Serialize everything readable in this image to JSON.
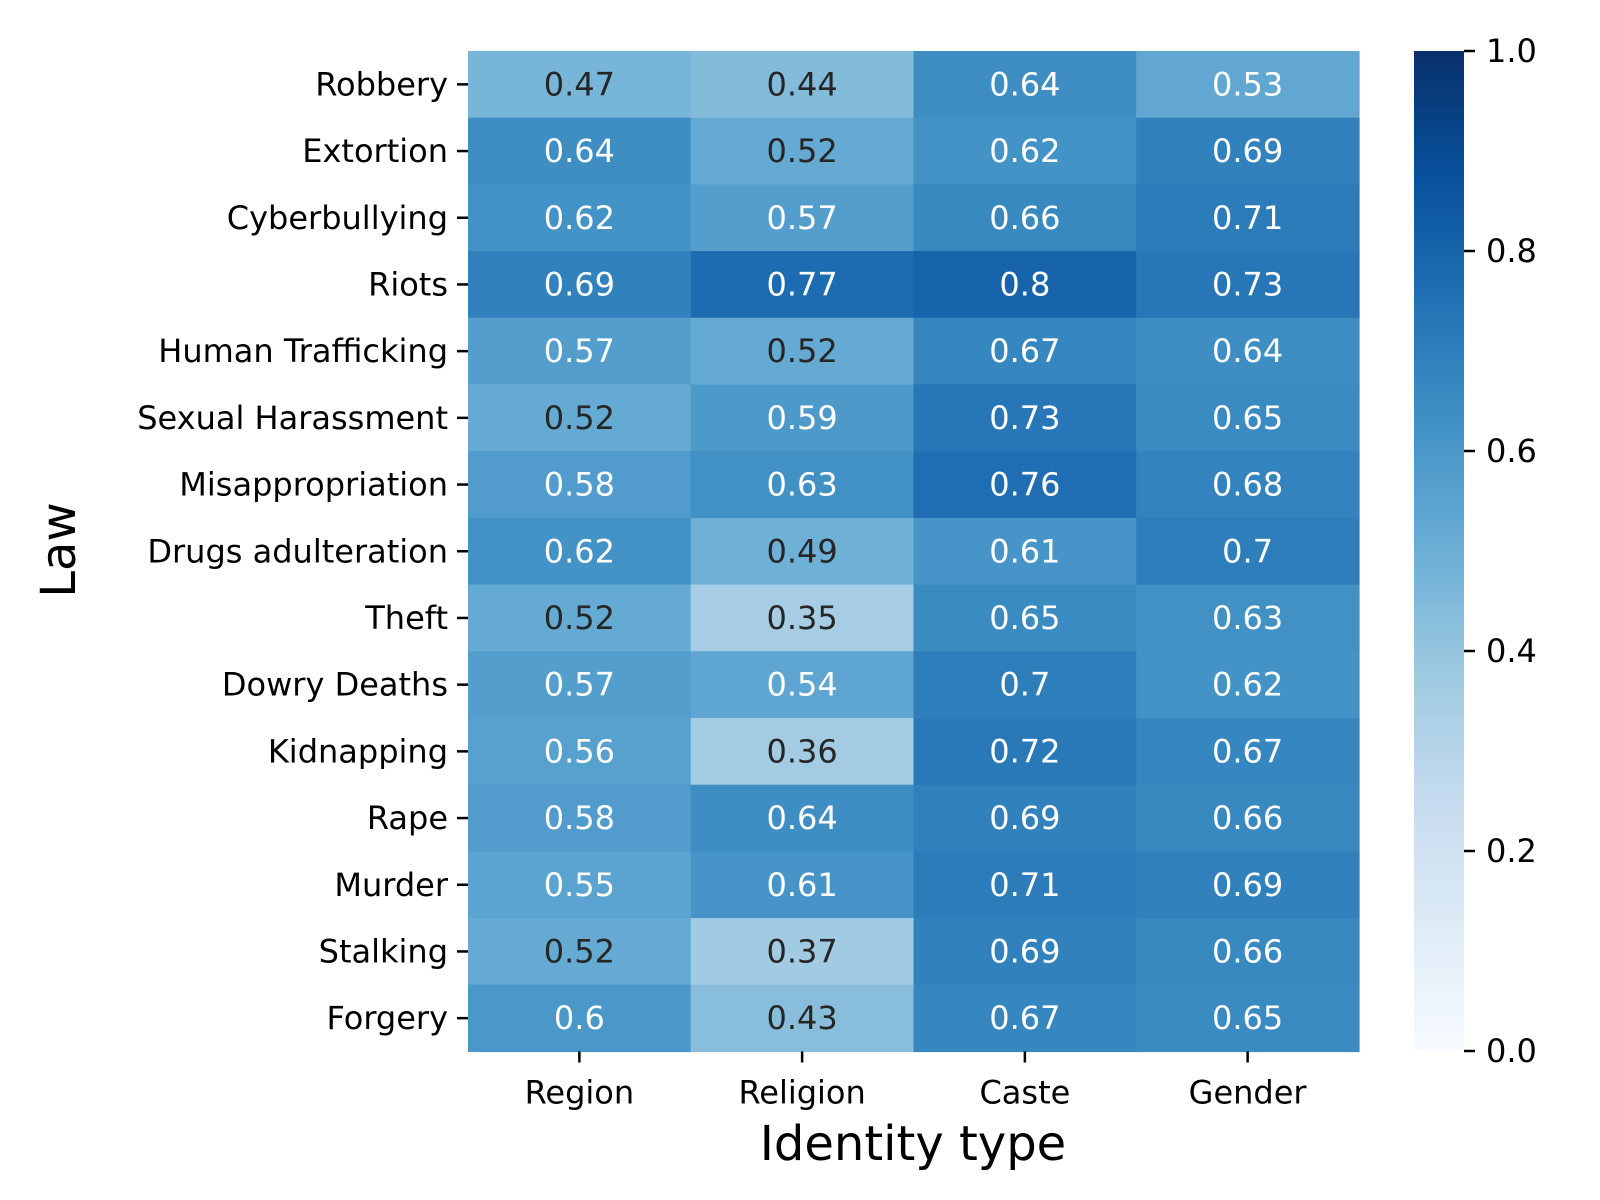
{
  "chart_data": {
    "type": "heatmap",
    "xlabel": "Identity type",
    "ylabel": "Law",
    "x_categories": [
      "Region",
      "Religion",
      "Caste",
      "Gender"
    ],
    "y_categories": [
      "Robbery",
      "Extortion",
      "Cyberbullying",
      "Riots",
      "Human Trafficking",
      "Sexual Harassment",
      "Misappropriation",
      "Drugs adulteration",
      "Theft",
      "Dowry Deaths",
      "Kidnapping",
      "Rape",
      "Murder",
      "Stalking",
      "Forgery"
    ],
    "values": [
      [
        0.47,
        0.44,
        0.64,
        0.53
      ],
      [
        0.64,
        0.52,
        0.62,
        0.69
      ],
      [
        0.62,
        0.57,
        0.66,
        0.71
      ],
      [
        0.69,
        0.77,
        0.8,
        0.73
      ],
      [
        0.57,
        0.52,
        0.67,
        0.64
      ],
      [
        0.52,
        0.59,
        0.73,
        0.65
      ],
      [
        0.58,
        0.63,
        0.76,
        0.68
      ],
      [
        0.62,
        0.49,
        0.61,
        0.7
      ],
      [
        0.52,
        0.35,
        0.65,
        0.63
      ],
      [
        0.57,
        0.54,
        0.7,
        0.62
      ],
      [
        0.56,
        0.36,
        0.72,
        0.67
      ],
      [
        0.58,
        0.64,
        0.69,
        0.66
      ],
      [
        0.55,
        0.61,
        0.71,
        0.69
      ],
      [
        0.52,
        0.37,
        0.69,
        0.66
      ],
      [
        0.6,
        0.43,
        0.67,
        0.65
      ]
    ],
    "value_labels": [
      [
        "0.47",
        "0.44",
        "0.64",
        "0.53"
      ],
      [
        "0.64",
        "0.52",
        "0.62",
        "0.69"
      ],
      [
        "0.62",
        "0.57",
        "0.66",
        "0.71"
      ],
      [
        "0.69",
        "0.77",
        "0.8",
        "0.73"
      ],
      [
        "0.57",
        "0.52",
        "0.67",
        "0.64"
      ],
      [
        "0.52",
        "0.59",
        "0.73",
        "0.65"
      ],
      [
        "0.58",
        "0.63",
        "0.76",
        "0.68"
      ],
      [
        "0.62",
        "0.49",
        "0.61",
        "0.7"
      ],
      [
        "0.52",
        "0.35",
        "0.65",
        "0.63"
      ],
      [
        "0.57",
        "0.54",
        "0.7",
        "0.62"
      ],
      [
        "0.56",
        "0.36",
        "0.72",
        "0.67"
      ],
      [
        "0.58",
        "0.64",
        "0.69",
        "0.66"
      ],
      [
        "0.55",
        "0.61",
        "0.71",
        "0.69"
      ],
      [
        "0.52",
        "0.37",
        "0.69",
        "0.66"
      ],
      [
        "0.6",
        "0.43",
        "0.67",
        "0.65"
      ]
    ],
    "colorbar": {
      "colormap": "Blues",
      "range": [
        0.0,
        1.0
      ],
      "ticks": [
        0.0,
        0.2,
        0.4,
        0.6,
        0.8,
        1.0
      ],
      "tick_labels": [
        "0.0",
        "0.2",
        "0.4",
        "0.6",
        "0.8",
        "1.0"
      ],
      "placement": "right"
    },
    "colors": {
      "light_text": "#ffffff",
      "dark_text": "#262626",
      "axis": "#000000"
    }
  }
}
